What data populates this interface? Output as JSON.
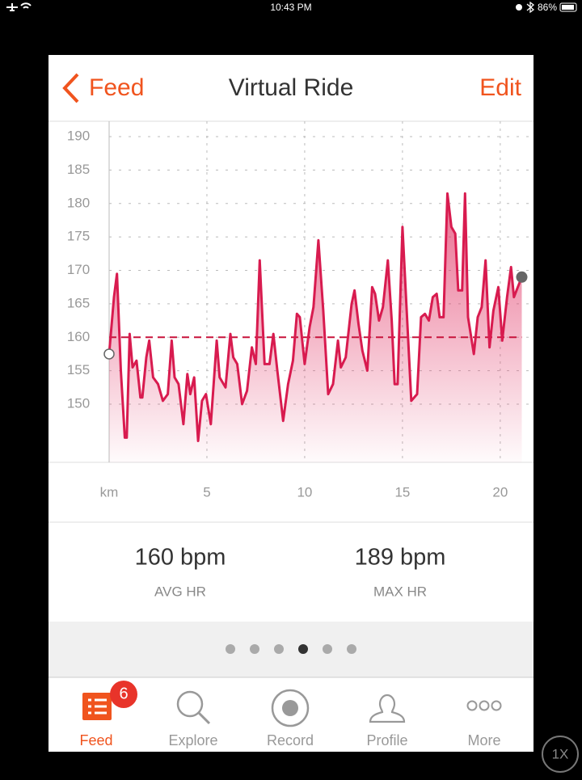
{
  "status_bar": {
    "time": "10:43 PM",
    "battery": "86%"
  },
  "nav": {
    "back": "Feed",
    "title": "Virtual Ride",
    "action": "Edit"
  },
  "chart_data": {
    "type": "line",
    "x": [
      0,
      0.25,
      0.4,
      0.6,
      0.8,
      0.9,
      1.05,
      1.2,
      1.4,
      1.6,
      1.7,
      1.9,
      2.05,
      2.25,
      2.5,
      2.75,
      3.0,
      3.2,
      3.35,
      3.55,
      3.8,
      4.0,
      4.15,
      4.35,
      4.55,
      4.75,
      4.95,
      5.2,
      5.5,
      5.65,
      5.95,
      6.2,
      6.35,
      6.55,
      6.8,
      7.05,
      7.3,
      7.5,
      7.7,
      7.95,
      8.2,
      8.4,
      8.6,
      8.9,
      9.15,
      9.4,
      9.6,
      9.75,
      10.0,
      10.25,
      10.45,
      10.7,
      10.95,
      11.2,
      11.45,
      11.7,
      11.85,
      12.1,
      12.4,
      12.55,
      12.75,
      12.95,
      13.2,
      13.45,
      13.6,
      13.8,
      14.0,
      14.25,
      14.45,
      14.6,
      14.75,
      15.0,
      15.2,
      15.45,
      15.75,
      15.95,
      16.15,
      16.35,
      16.55,
      16.75,
      16.9,
      17.1,
      17.3,
      17.5,
      17.7,
      17.85,
      18.05,
      18.2,
      18.35,
      18.65,
      18.85,
      19.05,
      19.25,
      19.45,
      19.65,
      19.9,
      20.1,
      20.35,
      20.55,
      20.7,
      20.9,
      21.1
    ],
    "series": [
      {
        "color": "#d81b4f",
        "values": [
          157.5,
          166,
          169.5,
          155,
          145,
          145,
          160.5,
          155.5,
          156.5,
          151,
          151,
          157,
          159.5,
          154,
          153,
          150.5,
          151.5,
          159.5,
          154,
          153,
          147,
          154.5,
          151.5,
          154,
          144.5,
          150.5,
          151.5,
          147,
          159.5,
          154,
          152.5,
          160.5,
          157,
          156,
          150,
          152,
          158.5,
          156,
          171.5,
          156,
          156,
          160.5,
          155,
          147.5,
          153,
          156.5,
          163.5,
          163,
          156,
          161.5,
          164.5,
          174.5,
          164,
          151.5,
          153,
          159.5,
          155.5,
          157,
          165,
          167,
          162,
          158,
          155,
          167.5,
          166.5,
          162.5,
          164.5,
          171.5,
          162.5,
          153,
          153,
          176.5,
          165,
          150.5,
          151.5,
          163,
          163.5,
          162.5,
          166,
          166.5,
          163,
          163,
          181.5,
          176.5,
          175.5,
          167,
          167,
          181.5,
          163,
          157.5,
          163,
          164.5,
          171.5,
          158.5,
          164,
          167.5,
          159.5,
          166,
          170.5,
          166,
          167.5,
          169
        ]
      }
    ],
    "xlim": [
      0,
      21.7
    ],
    "xticks": [
      {
        "value": 0,
        "label": "km"
      },
      5,
      10,
      15,
      20
    ],
    "ylim": [
      141.3,
      192.3
    ],
    "yticks": [
      150,
      155,
      160,
      165,
      170,
      175,
      180,
      185,
      190
    ],
    "grid": true,
    "reference_line": 160,
    "reference_color": "#c8143c"
  },
  "stats": [
    {
      "value": "160 bpm",
      "label": "AVG HR"
    },
    {
      "value": "189 bpm",
      "label": "MAX HR"
    }
  ],
  "tab_bar": {
    "tabs": [
      {
        "label": "Feed",
        "badge": "6"
      },
      {
        "label": "Explore"
      },
      {
        "label": "Record"
      },
      {
        "label": "Profile"
      },
      {
        "label": "More"
      }
    ]
  },
  "zoom": "1X"
}
